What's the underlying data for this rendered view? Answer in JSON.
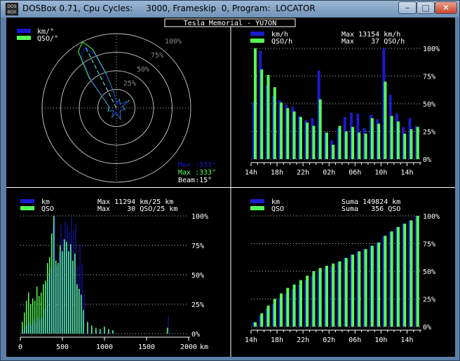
{
  "window": {
    "title": "DOSBox 0.71, Cpu Cycles:     3000, Frameskip  0, Program:  LOCATOR",
    "icon_label_top": "DOS",
    "icon_label_bottom": "BOX",
    "minimize_glyph": "–",
    "maximize_glyph": "□",
    "close_glyph": "✕"
  },
  "colors": {
    "series1": "#1a1acc",
    "series2": "#55ff55",
    "text": "#ffffff",
    "dots": "#bbbbbb",
    "grid": "#888888",
    "arrow": "#55ffff"
  },
  "header": {
    "title": "Tesla Memorial - YU7ON"
  },
  "polar": {
    "legend": [
      "km/°",
      "QSO/°"
    ],
    "ring_labels": [
      "25%",
      "50%",
      "75%",
      "100%"
    ],
    "max_km": "Max :333°",
    "max_qso": "Max :333°",
    "beam": "Beam:15°"
  },
  "chart_data": [
    {
      "type": "bar",
      "legend": [
        "km/h",
        "QSO/h"
      ],
      "summary": [
        "Max 13154 km/h",
        "Max    37 QSO/h"
      ],
      "y_ticks": [
        "0%",
        "25%",
        "50%",
        "75%",
        "100%"
      ],
      "x_ticks": [
        "14h",
        "18h",
        "22h",
        "02h",
        "06h",
        "10h",
        "14h"
      ],
      "ylim": [
        0,
        100
      ],
      "series": [
        {
          "name": "km/h",
          "values": [
            52,
            98,
            67,
            57,
            53,
            49,
            47,
            39,
            35,
            37,
            80,
            24,
            17,
            28,
            38,
            42,
            41,
            28,
            40,
            36,
            100,
            58,
            41,
            29,
            37,
            30
          ]
        },
        {
          "name": "QSO/h",
          "values": [
            100,
            81,
            76,
            65,
            51,
            46,
            43,
            38,
            33,
            30,
            54,
            24,
            13,
            30,
            25,
            29,
            24,
            23,
            37,
            32,
            70,
            39,
            34,
            23,
            27,
            29
          ]
        }
      ]
    },
    {
      "type": "bar",
      "legend": [
        "km",
        "QSO"
      ],
      "summary": [
        "Max 11294 km/25 km",
        "Max    30 QSO/25 km"
      ],
      "y_ticks": [
        "0%",
        "25%",
        "50%",
        "75%",
        "100%"
      ],
      "x_ticks": [
        "0",
        "500",
        "1000",
        "1500",
        "2000"
      ],
      "xlabel": "km",
      "ylim": [
        0,
        100
      ],
      "series": [
        {
          "name": "km",
          "x": [
            25,
            50,
            75,
            100,
            125,
            150,
            175,
            200,
            225,
            250,
            275,
            300,
            325,
            350,
            375,
            400,
            425,
            450,
            475,
            500,
            525,
            550,
            575,
            600,
            625,
            650,
            675,
            700,
            725,
            750,
            800,
            850,
            900,
            950,
            1000,
            1050,
            1100,
            1750
          ],
          "values": [
            3,
            6,
            8,
            10,
            7,
            12,
            9,
            14,
            11,
            13,
            21,
            43,
            48,
            56,
            92,
            100,
            58,
            69,
            93,
            81,
            96,
            92,
            86,
            98,
            88,
            93,
            58,
            76,
            59,
            33,
            9,
            5,
            3,
            3,
            5,
            3,
            2,
            15
          ]
        },
        {
          "name": "QSO",
          "x": [
            25,
            50,
            75,
            100,
            125,
            150,
            175,
            200,
            225,
            250,
            275,
            300,
            325,
            350,
            375,
            400,
            425,
            450,
            475,
            500,
            525,
            550,
            575,
            600,
            625,
            650,
            675,
            700,
            725,
            750,
            800,
            850,
            900,
            950,
            1000,
            1050,
            1100,
            1750
          ],
          "values": [
            10,
            18,
            28,
            35,
            25,
            30,
            28,
            40,
            32,
            35,
            42,
            45,
            60,
            65,
            85,
            100,
            62,
            60,
            75,
            70,
            80,
            78,
            70,
            76,
            62,
            68,
            42,
            38,
            33,
            20,
            10,
            7,
            5,
            4,
            6,
            4,
            3,
            5
          ]
        }
      ]
    },
    {
      "type": "bar",
      "legend": [
        "km",
        "QSO"
      ],
      "summary": [
        "Suma 149824 km",
        "Suma   356 QSO"
      ],
      "y_ticks": [
        "0%",
        "25%",
        "50%",
        "75%",
        "100%"
      ],
      "x_ticks": [
        "14h",
        "18h",
        "22h",
        "02h",
        "06h",
        "10h",
        "14h"
      ],
      "ylim": [
        0,
        100
      ],
      "series": [
        {
          "name": "km",
          "values": [
            4,
            10,
            16,
            21,
            26,
            30,
            34,
            38,
            42,
            46,
            50,
            53,
            55,
            58,
            62,
            65,
            68,
            70,
            73,
            76,
            82,
            86,
            90,
            93,
            96,
            100
          ]
        },
        {
          "name": "QSO",
          "values": [
            4,
            12,
            19,
            25,
            30,
            35,
            38,
            42,
            46,
            50,
            53,
            55,
            57,
            59,
            62,
            65,
            68,
            70,
            73,
            76,
            82,
            86,
            90,
            93,
            96,
            100
          ]
        }
      ]
    }
  ]
}
